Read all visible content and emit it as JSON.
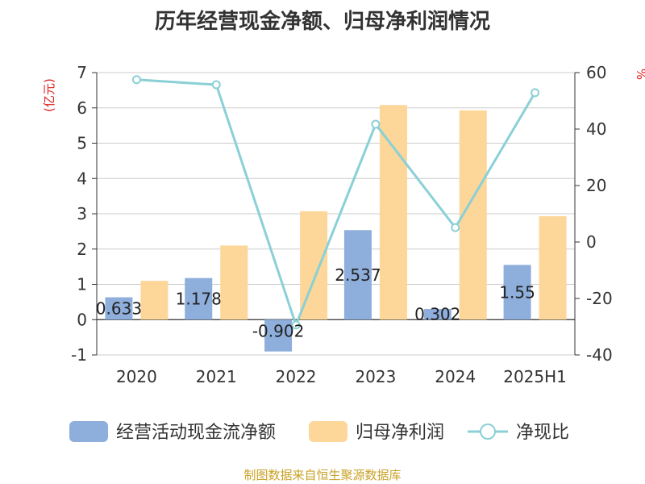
{
  "title": "历年经营现金净额、归母净利润情况",
  "source": "制图数据来自恒生聚源数据库",
  "chart_data": {
    "type": "bar",
    "categories": [
      "2020",
      "2021",
      "2022",
      "2023",
      "2024",
      "2025H1"
    ],
    "series": [
      {
        "name": "经营活动现金流净额",
        "type": "bar",
        "axis": "left",
        "color": "#8eaedc",
        "values": [
          0.633,
          1.178,
          -0.902,
          2.537,
          0.302,
          1.55
        ],
        "labels": [
          "0.633",
          "1.178",
          "-0.902",
          "2.537",
          "0.302",
          "1.55"
        ]
      },
      {
        "name": "归母净利润",
        "type": "bar",
        "axis": "left",
        "color": "#fdd699",
        "values": [
          1.1,
          2.1,
          3.07,
          6.08,
          5.93,
          2.93
        ]
      },
      {
        "name": "净现比",
        "type": "line",
        "axis": "right",
        "color": "#8ad0d6",
        "values": [
          57.5,
          55.7,
          -29.4,
          41.7,
          5.1,
          52.9
        ]
      }
    ],
    "left_axis": {
      "unit": "(亿元)",
      "range": [
        -1,
        7
      ],
      "ticks": [
        -1,
        0,
        1,
        2,
        3,
        4,
        5,
        6,
        7
      ]
    },
    "right_axis": {
      "unit": "%",
      "range": [
        -40,
        60
      ],
      "ticks": [
        -40,
        -20,
        0,
        20,
        40,
        60
      ]
    },
    "grid": true,
    "legend": "bottom"
  }
}
